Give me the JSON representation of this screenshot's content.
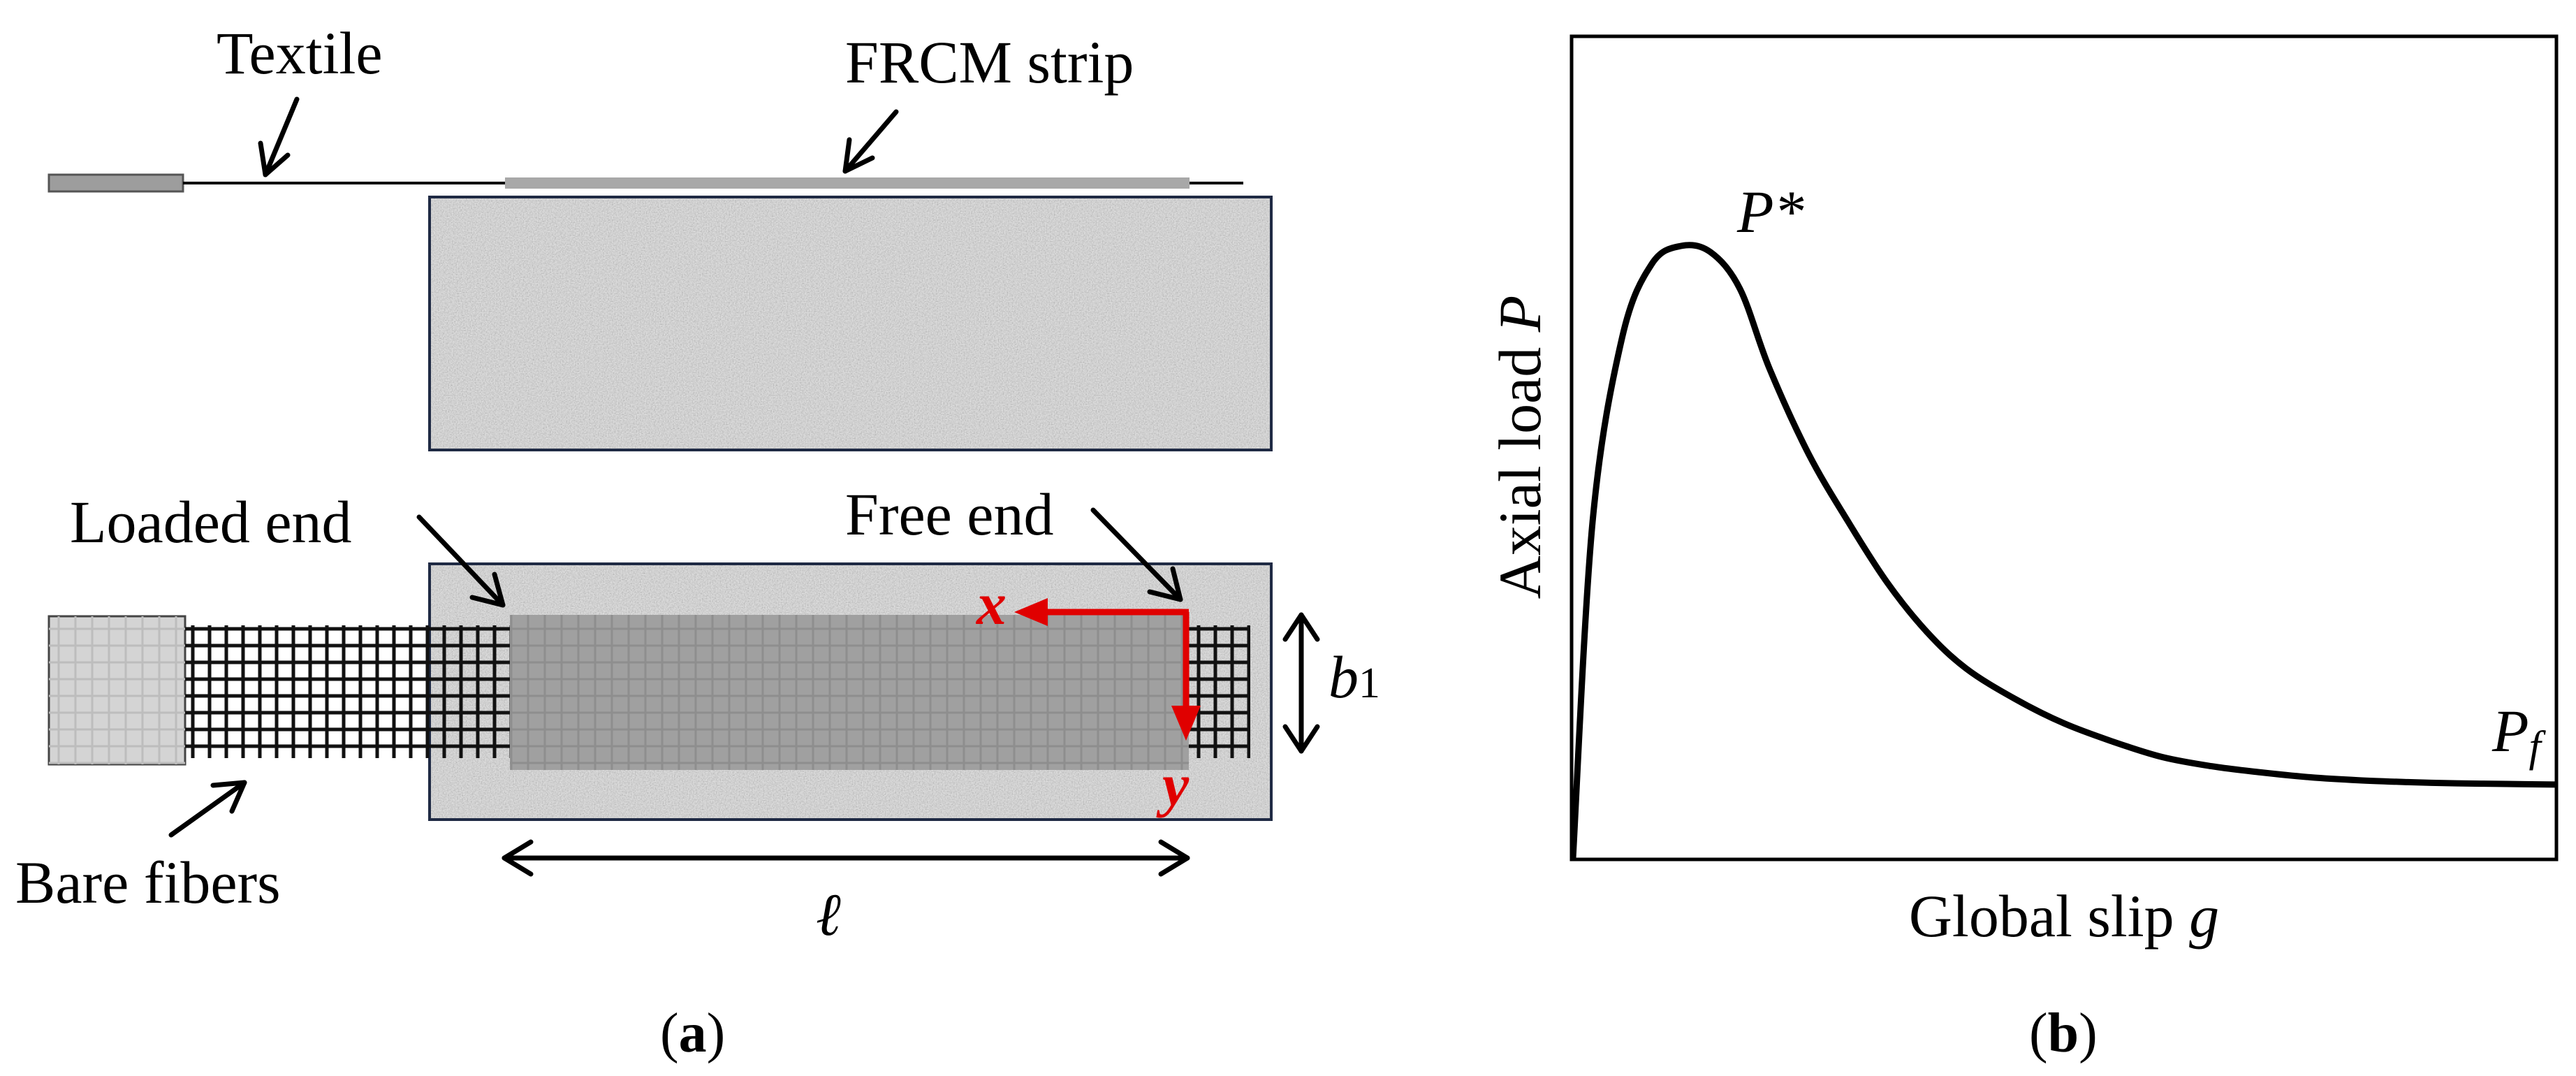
{
  "panel_a": {
    "labels": {
      "textile": "Textile",
      "frcm_strip": "FRCM strip",
      "loaded_end": "Loaded end",
      "free_end": "Free end",
      "bare_fibers": "Bare fibers",
      "axis_x": "x",
      "axis_y": "y",
      "width_symbol": "b",
      "width_subscript": "1",
      "length_symbol": "ℓ"
    },
    "caption_letter": "a"
  },
  "panel_b": {
    "ylabel_text": "Axial load ",
    "ylabel_symbol": "P",
    "xlabel_text": "Global slip ",
    "xlabel_symbol": "g",
    "peak_label": "P*",
    "final_label_symbol": "P",
    "final_label_subscript": "f",
    "caption_letter": "b"
  },
  "colors": {
    "concrete": "#cfcfcf",
    "matrix": "#a0a0a0",
    "clamp": "#d4d4d4",
    "accent_red": "#e00000",
    "outline": "#1f2a44"
  },
  "chart_data": {
    "type": "line",
    "title": "",
    "xlabel": "Global slip g",
    "ylabel": "Axial load P",
    "grid": false,
    "annotations": [
      "P*",
      "Pf"
    ],
    "series": [
      {
        "x": [
          0,
          0.02,
          0.05,
          0.08,
          0.11,
          0.14,
          0.17,
          0.2,
          0.24,
          0.28,
          0.32,
          0.36,
          0.4,
          0.45,
          0.5,
          0.55,
          0.6,
          0.65,
          0.7,
          0.75,
          0.8,
          0.85,
          0.9,
          0.95,
          1.0
        ],
        "values": [
          0,
          0.55,
          0.85,
          0.97,
          1.0,
          0.99,
          0.93,
          0.8,
          0.66,
          0.55,
          0.45,
          0.37,
          0.31,
          0.26,
          0.22,
          0.19,
          0.165,
          0.15,
          0.14,
          0.132,
          0.127,
          0.124,
          0.122,
          0.121,
          0.12
        ]
      }
    ]
  }
}
